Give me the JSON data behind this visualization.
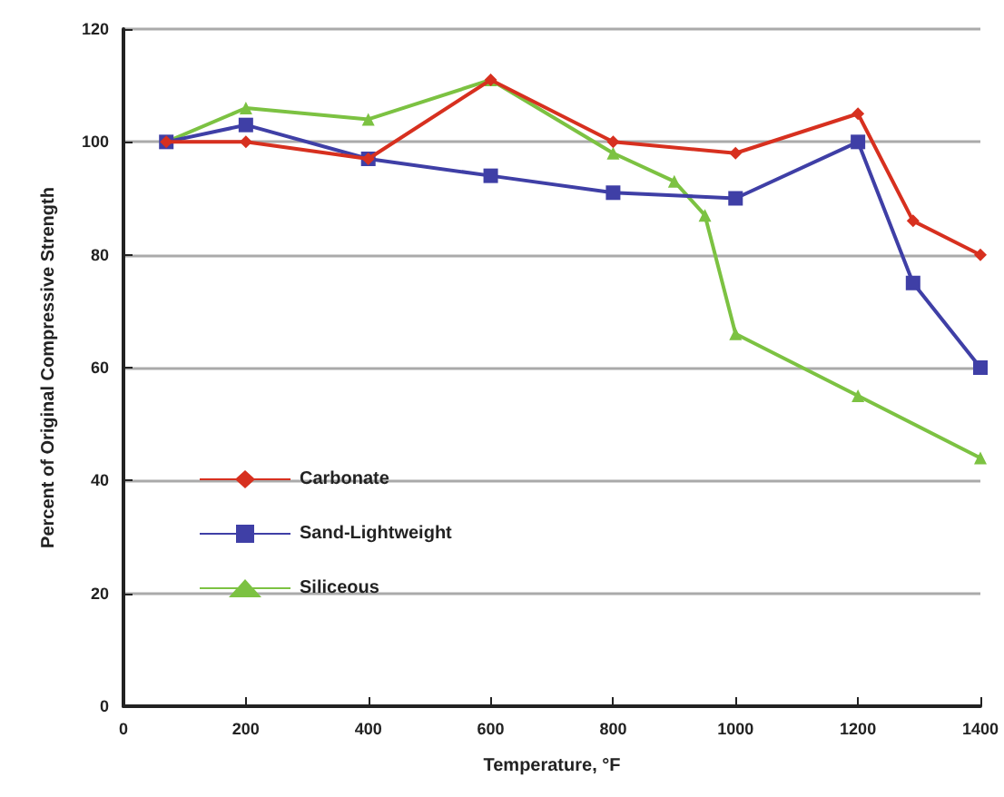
{
  "chart_data": {
    "type": "line",
    "xlabel": "Temperature, °F",
    "ylabel": "Percent of Original Compressive Strength",
    "xlim": [
      0,
      1400
    ],
    "xticks": [
      0,
      200,
      400,
      600,
      800,
      1000,
      1200,
      1400
    ],
    "ylim": [
      0,
      120
    ],
    "yticks": [
      0,
      20,
      40,
      60,
      80,
      100,
      120
    ],
    "grid": "y",
    "legend": "bottom left",
    "series": [
      {
        "name": "Carbonate",
        "color": "#d7301f",
        "marker": "diamond",
        "x": [
          70,
          200,
          400,
          600,
          800,
          1000,
          1200,
          1290,
          1400
        ],
        "values": [
          100,
          100,
          97,
          111,
          100,
          98,
          105,
          86,
          80
        ]
      },
      {
        "name": "Sand-Lightweight",
        "color": "#3f3fa6",
        "marker": "square",
        "x": [
          70,
          200,
          400,
          600,
          800,
          1000,
          1200,
          1290,
          1400
        ],
        "values": [
          100,
          103,
          97,
          94,
          91,
          90,
          100,
          75,
          60
        ]
      },
      {
        "name": "Siliceous",
        "color": "#7cc242",
        "marker": "triangle",
        "x": [
          70,
          200,
          400,
          600,
          800,
          900,
          950,
          1000,
          1200,
          1400
        ],
        "values": [
          100,
          106,
          104,
          111,
          98,
          93,
          87,
          66,
          55,
          44
        ]
      }
    ]
  }
}
